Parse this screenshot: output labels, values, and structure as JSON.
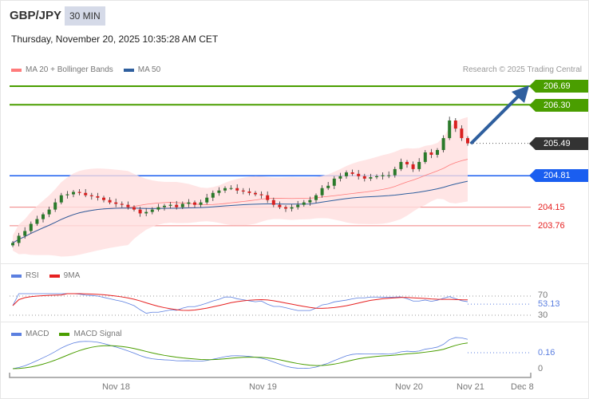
{
  "header": {
    "symbol": "GBP/JPY",
    "interval": "30 MIN",
    "datetime": "Thursday, November 20, 2025 10:35:28 AM CET"
  },
  "legend": {
    "ma20": "MA 20 + Bollinger Bands",
    "ma50": "MA 50",
    "credit": "Research © 2025 Trading Central"
  },
  "colors": {
    "target": "#4a9e00",
    "pivot": "#1a5ef0",
    "current": "#333333",
    "support": "#e62020",
    "ma20": "#ff7b7b",
    "ma50": "#2f5f9e",
    "rsi": "#5b7fe0",
    "rsi_ma": "#e62020",
    "macd": "#5b7fe0",
    "macd_signal": "#4a9e00",
    "bull": "#2b7a2b",
    "bear": "#d92020"
  },
  "levels": {
    "target2": "206.69",
    "target1": "206.30",
    "current": "205.49",
    "pivot": "204.81",
    "support1": "204.15",
    "support2": "203.76"
  },
  "rsi": {
    "label": "RSI",
    "ma_label": "9MA",
    "level_high": "70",
    "level_low": "30",
    "value": "53.13"
  },
  "macd": {
    "label": "MACD",
    "signal_label": "MACD Signal",
    "value": "0.16",
    "zero": "0"
  },
  "xaxis": {
    "labels": [
      "Nov 18",
      "Nov 19",
      "Nov 20",
      "Nov 21",
      "Dec 8"
    ]
  },
  "chart_data": {
    "type": "candlestick",
    "closes": [
      203.4,
      203.55,
      203.65,
      203.8,
      203.9,
      204.0,
      204.1,
      204.25,
      204.4,
      204.42,
      204.47,
      204.45,
      204.4,
      204.38,
      204.35,
      204.3,
      204.25,
      204.22,
      204.2,
      204.15,
      204.1,
      204.02,
      204.05,
      204.1,
      204.15,
      204.18,
      204.2,
      204.15,
      204.22,
      204.25,
      204.2,
      204.25,
      204.35,
      204.45,
      204.5,
      204.55,
      204.55,
      204.5,
      204.48,
      204.45,
      204.42,
      204.4,
      204.3,
      204.2,
      204.15,
      204.12,
      204.15,
      204.2,
      204.25,
      204.3,
      204.4,
      204.55,
      204.6,
      204.75,
      204.8,
      204.88,
      204.85,
      204.8,
      204.75,
      204.78,
      204.8,
      204.82,
      204.82,
      204.95,
      205.1,
      205.05,
      204.95,
      205.1,
      205.3,
      205.25,
      205.35,
      205.6,
      205.97,
      205.8,
      205.6,
      205.49
    ],
    "forecast_target": 206.69
  }
}
